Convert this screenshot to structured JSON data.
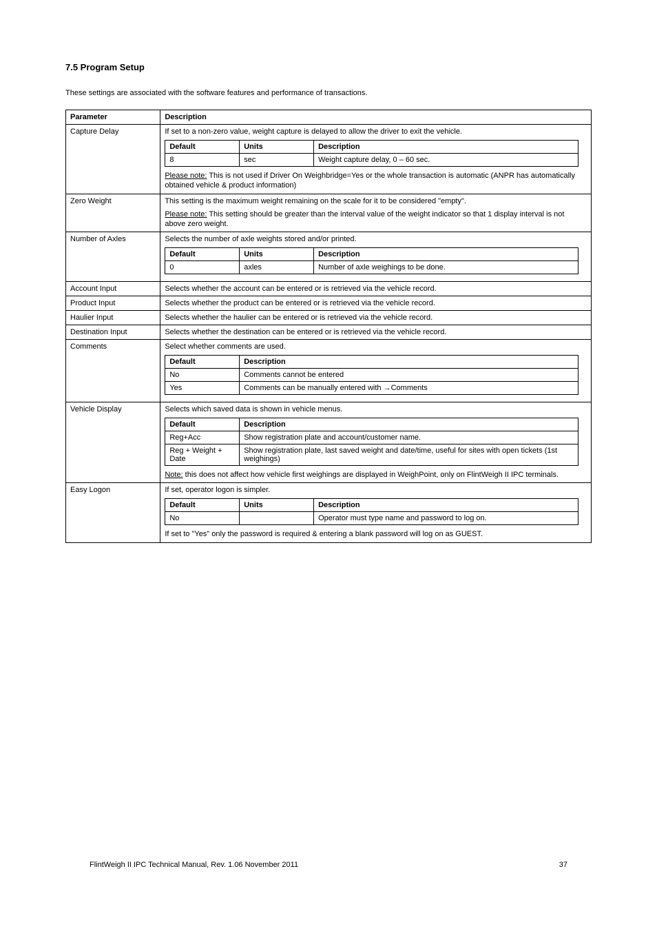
{
  "heading": "7.5  Program Setup",
  "intro": "These settings are associated with the software features and performance of transactions.",
  "table": {
    "header": {
      "col1": "Parameter",
      "col2": "Description"
    },
    "rows": [
      {
        "name": "Capture Delay",
        "desc": "If set to a non-zero value, weight capture is delayed to allow the driver to exit the vehicle.",
        "inner": {
          "headers": [
            "Default",
            "Units",
            "Description"
          ],
          "rows": [
            [
              "8",
              "sec",
              "Weight capture delay, 0 – 60 sec."
            ]
          ]
        },
        "note": "Please note: This is not used if Driver On Weighbridge=Yes or the whole transaction is automatic (ANPR has automatically obtained vehicle & product information)"
      },
      {
        "name": "Zero Weight",
        "desc": "This setting is the maximum weight remaining on the scale for it to be considered \"empty\".",
        "note": "Please note: This setting should be greater than the interval value of the weight indicator so that 1 display interval is not above zero weight."
      },
      {
        "name": "Number of Axles",
        "desc": "Selects the number of axle weights stored and/or printed.",
        "inner": {
          "headers": [
            "Default",
            "Units",
            "Description"
          ],
          "rows": [
            [
              "0",
              "axles",
              "Number of axle weighings to be done."
            ]
          ]
        }
      },
      {
        "name": "Account Input",
        "desc": "Selects whether the account can be entered or is retrieved via the vehicle record."
      },
      {
        "name": "Product Input",
        "desc": "Selects whether the product can be entered or is retrieved via the vehicle record."
      },
      {
        "name": "Haulier Input",
        "desc": "Selects whether the haulier can be entered or is retrieved via the vehicle record."
      },
      {
        "name": "Destination Input",
        "desc": "Selects whether the destination can be entered or is retrieved via the vehicle record."
      },
      {
        "name": "Comments",
        "desc": "Select whether comments are used.",
        "inner": {
          "headers": [
            "Default",
            "Description"
          ],
          "rows": [
            [
              "No",
              "Comments cannot be entered"
            ],
            [
              "Yes",
              "Comments can be manually entered with →Comments"
            ]
          ]
        }
      },
      {
        "name": "Vehicle Display",
        "desc": "Selects which saved data is shown in vehicle menus.",
        "inner": {
          "headers": [
            "Default",
            "Description"
          ],
          "rows": [
            [
              "Reg+Acc",
              "Show registration plate and account/customer name."
            ],
            [
              "Reg + Weight + Date",
              "Show registration plate, last saved weight and date/time, useful for sites with open tickets (1st weighings)"
            ]
          ]
        },
        "noteShort": "Note: this does not affect how vehicle first weighings are displayed in WeighPoint, only on FlintWeigh II IPC terminals."
      },
      {
        "name": "Easy Logon",
        "desc": "If set, operator logon is simpler.",
        "inner": {
          "headers": [
            "Default",
            "Units",
            "Description"
          ],
          "rows": [
            [
              "No",
              "",
              "Operator must type name and password to log on."
            ]
          ]
        },
        "note2": "If set to \"Yes\" only the password is required & entering a blank password will log on as GUEST."
      }
    ]
  },
  "footer": "FlintWeigh II IPC Technical Manual, Rev. 1.06   November 2011",
  "footerPage": "37"
}
